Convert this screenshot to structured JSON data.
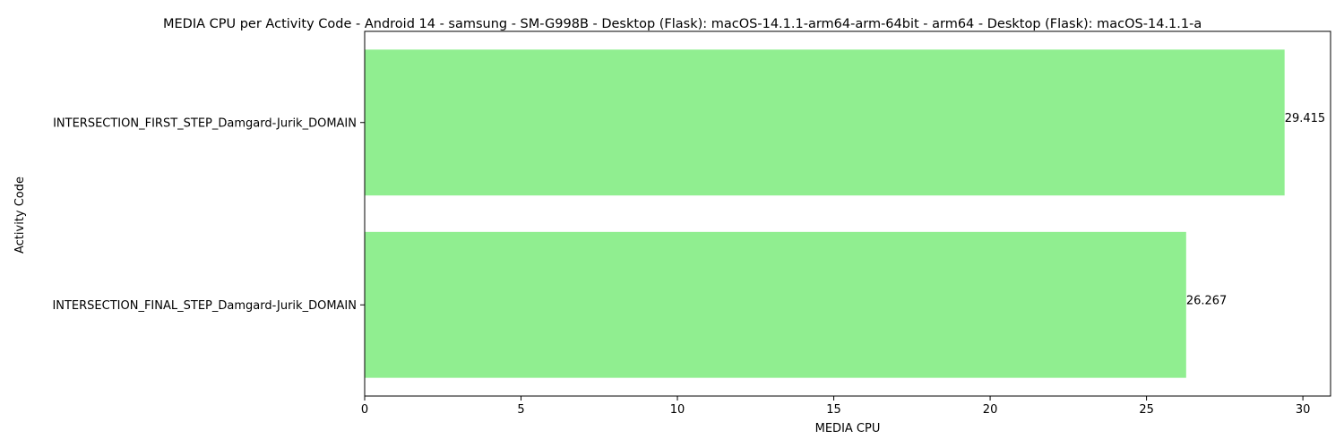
{
  "chart_data": {
    "type": "bar",
    "orientation": "horizontal",
    "title": "MEDIA CPU per Activity Code - Android 14 - samsung - SM-G998B - Desktop (Flask): macOS-14.1.1-arm64-arm-64bit - arm64 - Desktop (Flask): macOS-14.1.1-a",
    "xlabel": "MEDIA CPU",
    "ylabel": "Activity Code",
    "categories": [
      "INTERSECTION_FIRST_STEP_Damgard-Jurik_DOMAIN",
      "INTERSECTION_FINAL_STEP_Damgard-Jurik_DOMAIN"
    ],
    "values": [
      29.415,
      26.267
    ],
    "value_labels": [
      "29.415",
      "26.267"
    ],
    "xlim": [
      0,
      30.885
    ],
    "xticks": [
      0,
      5,
      10,
      15,
      20,
      25,
      30
    ],
    "xtick_labels": [
      "0",
      "5",
      "10",
      "15",
      "20",
      "25",
      "30"
    ],
    "bar_color": "#90ee90",
    "grid": false,
    "legend": "none"
  }
}
